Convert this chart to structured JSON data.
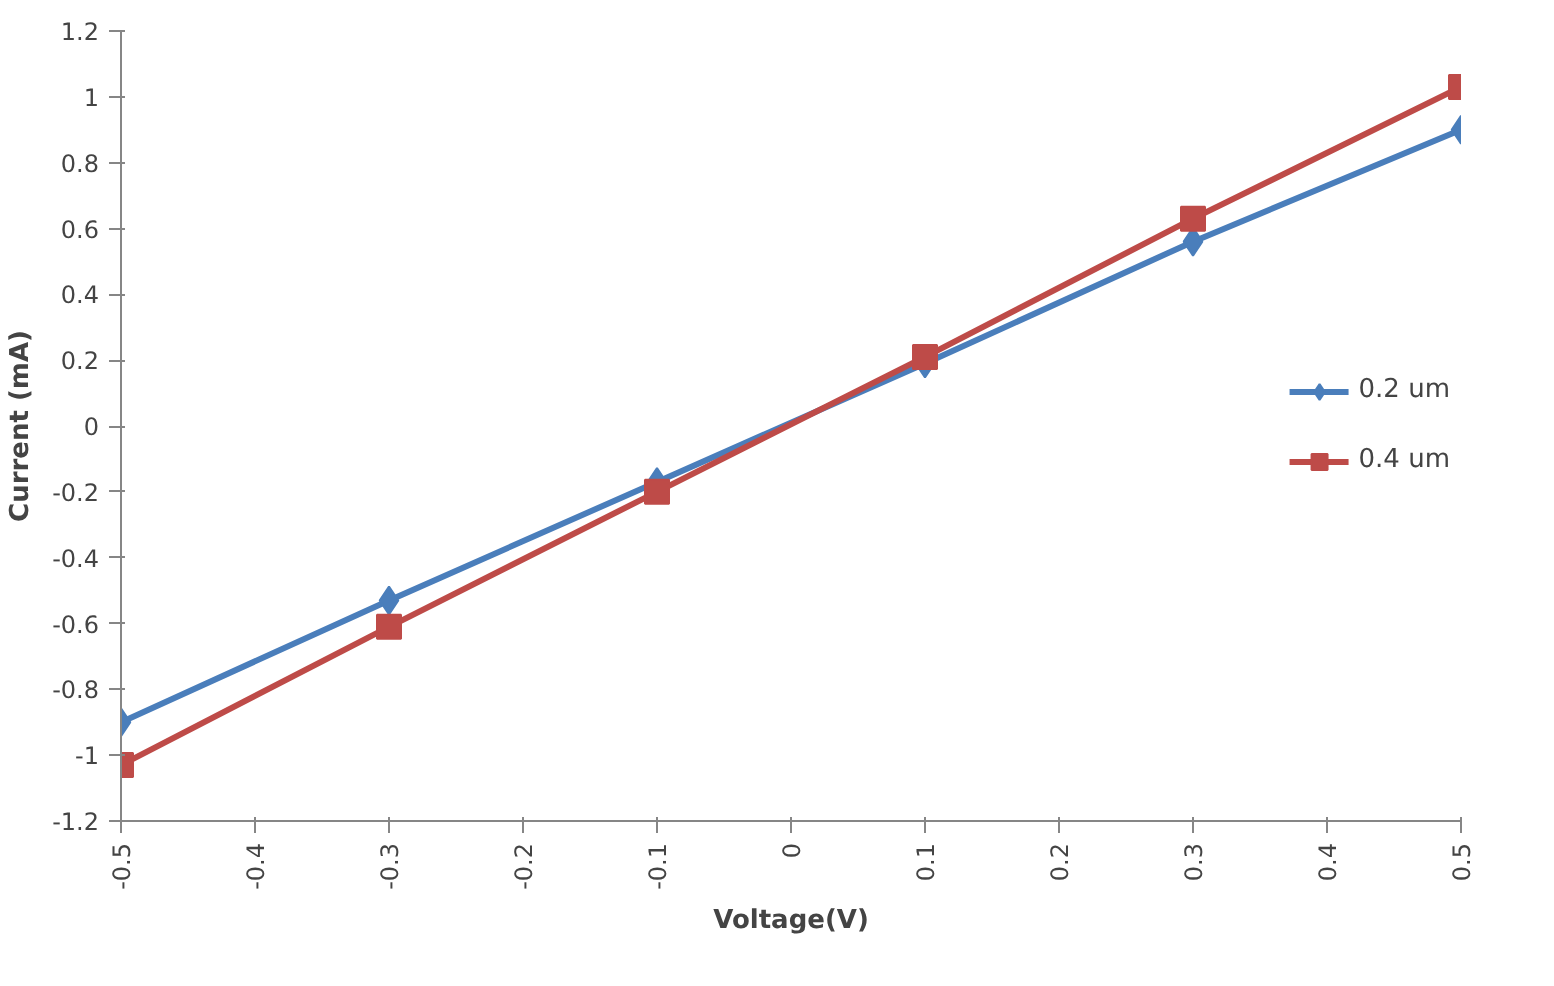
{
  "chart_data": {
    "type": "line",
    "xlabel": "Voltage(V)",
    "ylabel": "Current (mA)",
    "x": [
      -0.5,
      -0.3,
      -0.1,
      0.1,
      0.3,
      0.5
    ],
    "series": [
      {
        "name": "0.2 um",
        "color": "#4a7ebb",
        "marker": "diamond",
        "values": [
          -0.9,
          -0.53,
          -0.17,
          0.19,
          0.56,
          0.9
        ]
      },
      {
        "name": "0.4 um",
        "color": "#be4b48",
        "marker": "square",
        "values": [
          -1.03,
          -0.61,
          -0.2,
          0.21,
          0.63,
          1.03
        ]
      }
    ],
    "xlim": [
      -0.5,
      0.5
    ],
    "ylim": [
      -1.2,
      1.2
    ],
    "xticks": [
      -0.5,
      -0.4,
      -0.3,
      -0.2,
      -0.1,
      0,
      0.1,
      0.2,
      0.3,
      0.4,
      0.5
    ],
    "yticks": [
      -1.2,
      -1,
      -0.8,
      -0.6,
      -0.4,
      -0.2,
      0,
      0.2,
      0.4,
      0.6,
      0.8,
      1,
      1.2
    ],
    "grid": false,
    "legend": "right",
    "line_style": "solid"
  }
}
